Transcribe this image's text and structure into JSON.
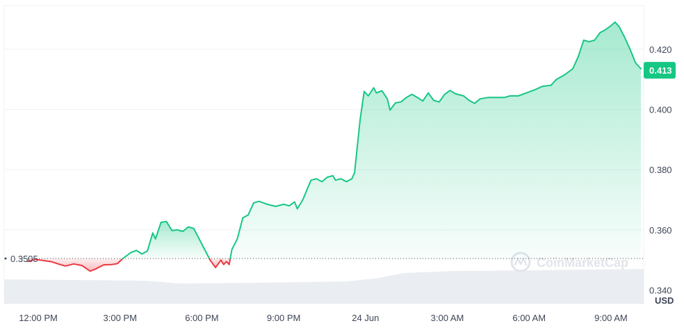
{
  "chart_data": {
    "type": "line",
    "currency": "USD",
    "reference_value": 0.3505,
    "reference_label": "0.3505",
    "last_value": 0.413,
    "last_label": "0.413",
    "ylim": [
      0.3355,
      0.4345
    ],
    "yticks": [
      {
        "value": 0.34,
        "label": "0.340"
      },
      {
        "value": 0.36,
        "label": "0.360"
      },
      {
        "value": 0.38,
        "label": "0.380"
      },
      {
        "value": 0.4,
        "label": "0.400"
      },
      {
        "value": 0.42,
        "label": "0.420"
      }
    ],
    "xlim": [
      -1.25,
      22.2
    ],
    "xticks": [
      {
        "value": 0,
        "label": "12:00 PM"
      },
      {
        "value": 3,
        "label": "3:00 PM"
      },
      {
        "value": 6,
        "label": "6:00 PM"
      },
      {
        "value": 9,
        "label": "9:00 PM"
      },
      {
        "value": 12,
        "label": "24 Jun"
      },
      {
        "value": 15,
        "label": "3:00 AM"
      },
      {
        "value": 18,
        "label": "6:00 AM"
      },
      {
        "value": 21,
        "label": "9:00 AM"
      }
    ],
    "series": [
      {
        "points": [
          [
            -0.4,
            0.3495
          ],
          [
            -0.1,
            0.3502
          ],
          [
            0.2,
            0.3498
          ],
          [
            0.5,
            0.3494
          ],
          [
            0.8,
            0.3485
          ],
          [
            1.0,
            0.348
          ],
          [
            1.3,
            0.3487
          ],
          [
            1.6,
            0.3482
          ],
          [
            1.9,
            0.3463
          ],
          [
            2.1,
            0.347
          ],
          [
            2.4,
            0.3484
          ],
          [
            2.7,
            0.3485
          ],
          [
            2.9,
            0.3488
          ],
          [
            3.1,
            0.3505
          ],
          [
            3.4,
            0.3525
          ],
          [
            3.6,
            0.3532
          ],
          [
            3.8,
            0.352
          ],
          [
            4.0,
            0.353
          ],
          [
            4.2,
            0.359
          ],
          [
            4.3,
            0.357
          ],
          [
            4.5,
            0.3625
          ],
          [
            4.7,
            0.3628
          ],
          [
            4.9,
            0.3598
          ],
          [
            5.1,
            0.36
          ],
          [
            5.3,
            0.3595
          ],
          [
            5.5,
            0.361
          ],
          [
            5.7,
            0.3605
          ],
          [
            5.9,
            0.357
          ],
          [
            6.1,
            0.3535
          ],
          [
            6.3,
            0.35
          ],
          [
            6.5,
            0.3475
          ],
          [
            6.7,
            0.35
          ],
          [
            6.8,
            0.3485
          ],
          [
            6.9,
            0.3495
          ],
          [
            7.0,
            0.3485
          ],
          [
            7.1,
            0.3535
          ],
          [
            7.3,
            0.357
          ],
          [
            7.5,
            0.364
          ],
          [
            7.7,
            0.365
          ],
          [
            7.9,
            0.369
          ],
          [
            8.1,
            0.3695
          ],
          [
            8.4,
            0.3685
          ],
          [
            8.7,
            0.3678
          ],
          [
            9.0,
            0.3685
          ],
          [
            9.2,
            0.368
          ],
          [
            9.4,
            0.3693
          ],
          [
            9.5,
            0.367
          ],
          [
            9.7,
            0.37
          ],
          [
            10.0,
            0.3765
          ],
          [
            10.2,
            0.377
          ],
          [
            10.4,
            0.376
          ],
          [
            10.6,
            0.3775
          ],
          [
            10.8,
            0.378
          ],
          [
            10.9,
            0.3765
          ],
          [
            11.1,
            0.377
          ],
          [
            11.3,
            0.376
          ],
          [
            11.5,
            0.377
          ],
          [
            11.6,
            0.379
          ],
          [
            11.8,
            0.3965
          ],
          [
            11.95,
            0.406
          ],
          [
            12.1,
            0.4045
          ],
          [
            12.3,
            0.4072
          ],
          [
            12.4,
            0.4055
          ],
          [
            12.6,
            0.4062
          ],
          [
            12.8,
            0.4035
          ],
          [
            12.9,
            0.3998
          ],
          [
            13.1,
            0.4022
          ],
          [
            13.3,
            0.4025
          ],
          [
            13.5,
            0.404
          ],
          [
            13.7,
            0.405
          ],
          [
            13.9,
            0.404
          ],
          [
            14.1,
            0.4028
          ],
          [
            14.3,
            0.4055
          ],
          [
            14.5,
            0.403
          ],
          [
            14.7,
            0.4025
          ],
          [
            14.9,
            0.405
          ],
          [
            15.1,
            0.4063
          ],
          [
            15.3,
            0.4052
          ],
          [
            15.6,
            0.4045
          ],
          [
            15.8,
            0.403
          ],
          [
            16.0,
            0.402
          ],
          [
            16.2,
            0.4035
          ],
          [
            16.5,
            0.404
          ],
          [
            16.8,
            0.404
          ],
          [
            17.1,
            0.404
          ],
          [
            17.3,
            0.4045
          ],
          [
            17.6,
            0.4045
          ],
          [
            17.9,
            0.4055
          ],
          [
            18.2,
            0.4065
          ],
          [
            18.5,
            0.4077
          ],
          [
            18.8,
            0.408
          ],
          [
            19.0,
            0.41
          ],
          [
            19.3,
            0.4115
          ],
          [
            19.6,
            0.4135
          ],
          [
            19.8,
            0.4175
          ],
          [
            20.0,
            0.423
          ],
          [
            20.2,
            0.4225
          ],
          [
            20.4,
            0.423
          ],
          [
            20.6,
            0.4255
          ],
          [
            20.8,
            0.4265
          ],
          [
            21.0,
            0.4278
          ],
          [
            21.15,
            0.429
          ],
          [
            21.3,
            0.4275
          ],
          [
            21.5,
            0.424
          ],
          [
            21.7,
            0.42
          ],
          [
            21.9,
            0.4155
          ],
          [
            22.1,
            0.4135
          ]
        ]
      }
    ],
    "volume_watermark": "CoinMarketCap",
    "colors": {
      "up": "#16c784",
      "down": "#ea3943",
      "grid": "#eff2f5",
      "axis_text": "#3d4556",
      "reference_line": "#3d4556",
      "volume": "#eaedf1"
    },
    "grid": true
  }
}
